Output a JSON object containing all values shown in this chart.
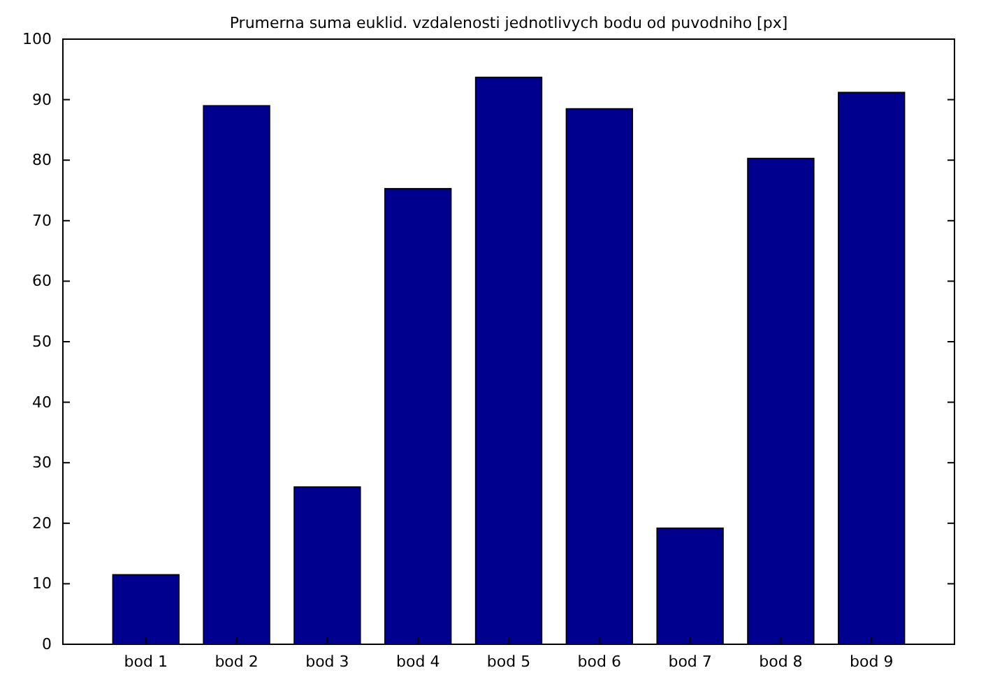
{
  "chart_data": {
    "type": "bar",
    "title": "Prumerna suma euklid. vzdalenosti jednotlivych bodu od puvodniho [px]",
    "categories": [
      "bod 1",
      "bod 2",
      "bod 3",
      "bod 4",
      "bod 5",
      "bod 6",
      "bod 7",
      "bod 8",
      "bod 9"
    ],
    "values": [
      11.5,
      89,
      26,
      75.3,
      93.7,
      88.5,
      19.2,
      80.3,
      91.2
    ],
    "color": "#00008f",
    "ylim": [
      0,
      100
    ],
    "yticks": [
      0,
      10,
      20,
      30,
      40,
      50,
      60,
      70,
      80,
      90,
      100
    ],
    "grid": false
  }
}
